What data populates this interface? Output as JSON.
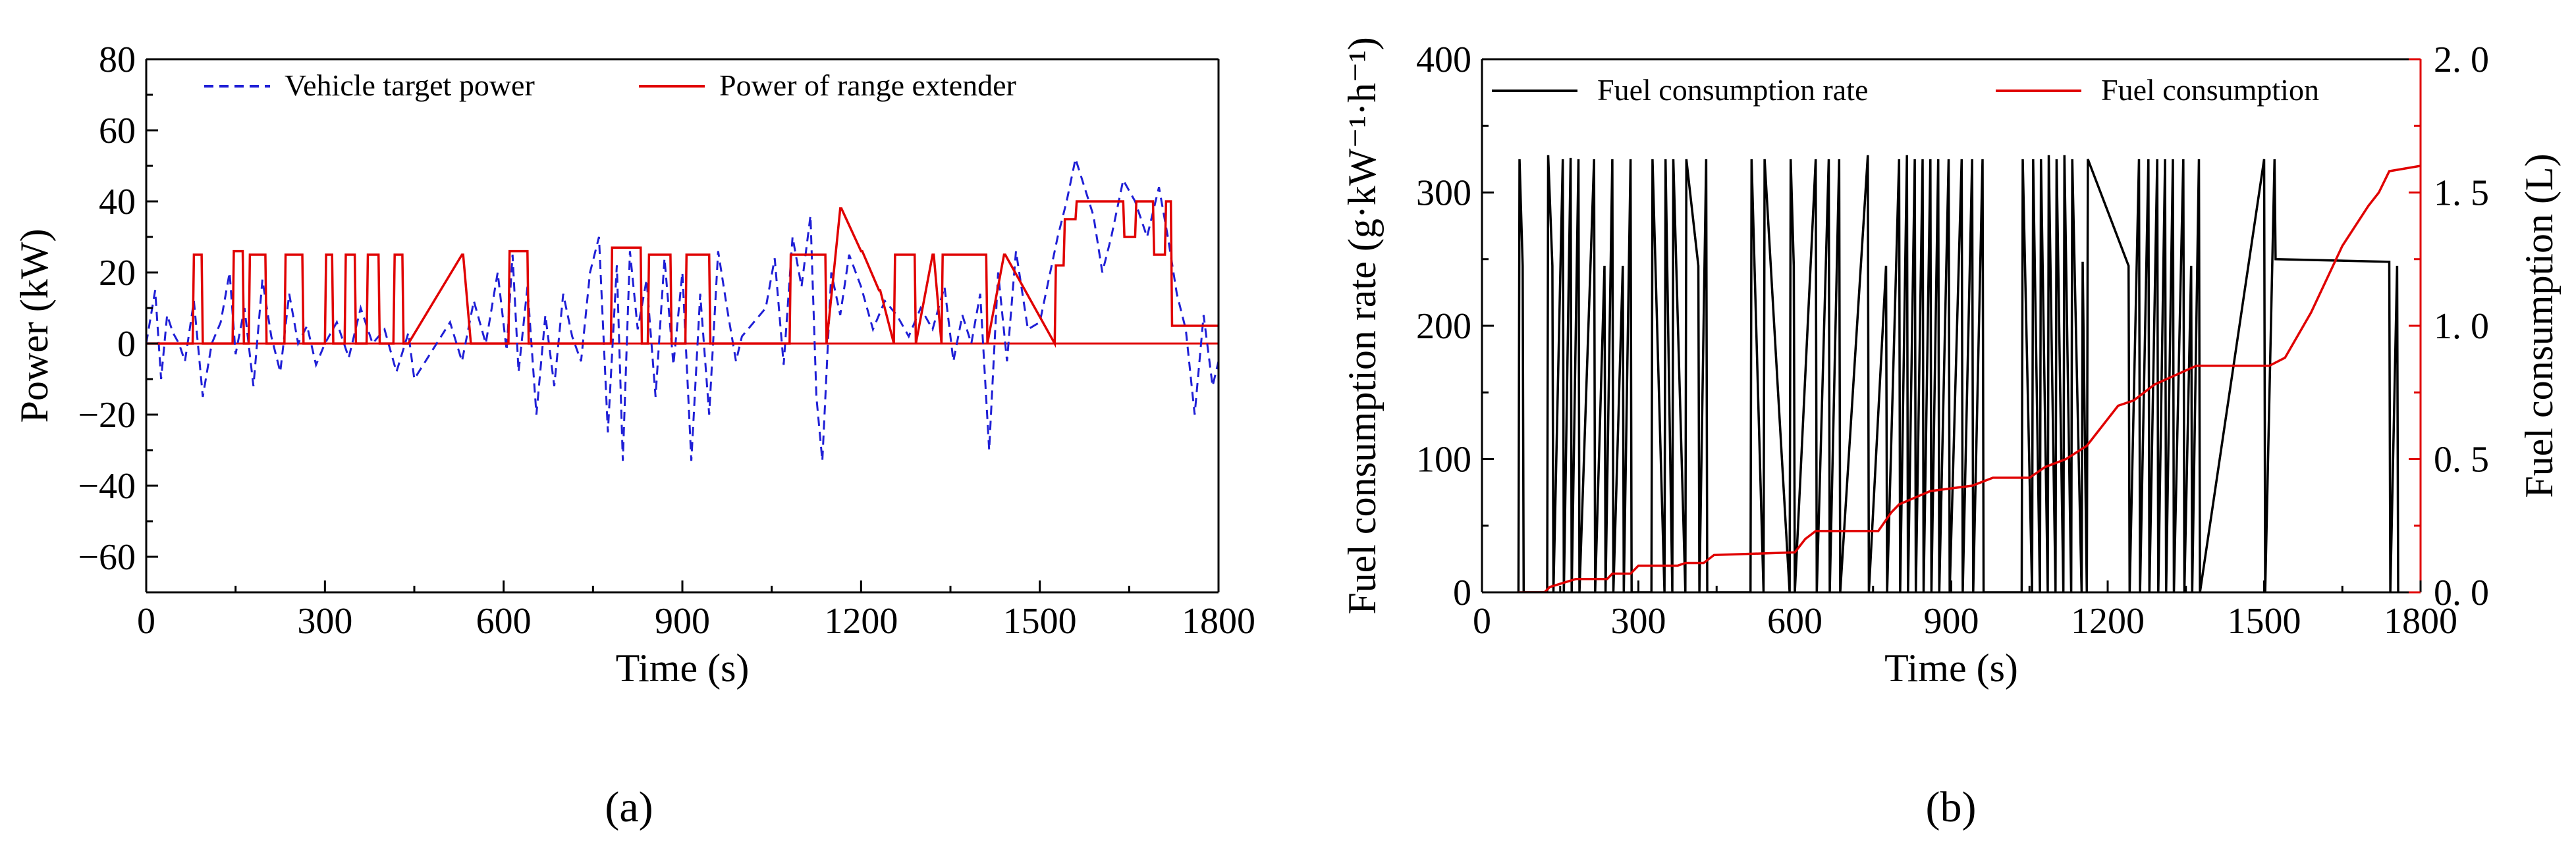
{
  "chart_data": [
    {
      "type": "line",
      "panel_label_text": "(a)",
      "xlabel": "Time (s)",
      "ylabel": "Power (kW)",
      "xlim": [
        0,
        1800
      ],
      "ylim": [
        -70,
        80
      ],
      "x_ticks": [
        0,
        300,
        600,
        900,
        1200,
        1500,
        1800
      ],
      "y_ticks": [
        -60,
        -40,
        -20,
        0,
        20,
        40,
        60,
        80
      ],
      "y_tick_labels": [
        "−60",
        "−40",
        "−20",
        "0",
        "20",
        "40",
        "60",
        "80"
      ],
      "legend": {
        "placement": "top",
        "entries": [
          "Vehicle target power",
          "Power of range extender"
        ]
      },
      "series": [
        {
          "name": "Vehicle target power",
          "color": "#1f1fd6",
          "style": "dashed",
          "x": [
            0,
            15,
            25,
            35,
            45,
            55,
            65,
            80,
            95,
            110,
            125,
            140,
            150,
            165,
            180,
            195,
            210,
            225,
            240,
            255,
            270,
            285,
            300,
            320,
            340,
            360,
            380,
            400,
            420,
            440,
            450,
            510,
            530,
            550,
            570,
            590,
            605,
            615,
            625,
            640,
            655,
            670,
            685,
            700,
            715,
            730,
            745,
            760,
            775,
            790,
            800,
            812,
            825,
            840,
            855,
            870,
            885,
            900,
            915,
            930,
            945,
            960,
            975,
            990,
            1000,
            1040,
            1055,
            1070,
            1085,
            1100,
            1115,
            1125,
            1135,
            1150,
            1165,
            1180,
            1200,
            1220,
            1240,
            1260,
            1280,
            1300,
            1320,
            1340,
            1355,
            1370,
            1385,
            1400,
            1415,
            1430,
            1445,
            1460,
            1480,
            1500,
            1515,
            1530,
            1545,
            1560,
            1575,
            1590,
            1605,
            1620,
            1640,
            1660,
            1680,
            1700,
            1715,
            1730,
            1745,
            1760,
            1775,
            1790,
            1800
          ],
          "y": [
            0,
            15,
            -10,
            8,
            3,
            0,
            -5,
            12,
            -15,
            0,
            6,
            20,
            -3,
            10,
            -12,
            18,
            2,
            -8,
            14,
            0,
            5,
            -6,
            0,
            6,
            -4,
            10,
            0,
            4,
            -8,
            3,
            -10,
            6,
            -5,
            12,
            0,
            20,
            -2,
            25,
            -8,
            16,
            -20,
            8,
            -12,
            14,
            2,
            -5,
            20,
            30,
            -25,
            22,
            -33,
            26,
            4,
            18,
            -15,
            24,
            -6,
            20,
            -33,
            14,
            -20,
            26,
            10,
            -5,
            2,
            10,
            24,
            -6,
            30,
            16,
            36,
            -15,
            -33,
            20,
            8,
            25,
            16,
            4,
            12,
            8,
            2,
            10,
            4,
            16,
            -5,
            8,
            0,
            14,
            -30,
            20,
            -5,
            26,
            4,
            6,
            18,
            30,
            40,
            52,
            44,
            36,
            20,
            30,
            46,
            40,
            30,
            44,
            30,
            14,
            4,
            -20,
            8,
            -12,
            -5
          ]
        },
        {
          "name": "Power of range extender",
          "color": "#e00000",
          "style": "solid",
          "x": [
            0,
            78,
            80,
            93,
            95,
            145,
            147,
            162,
            164,
            172,
            174,
            200,
            202,
            232,
            234,
            262,
            264,
            300,
            302,
            312,
            314,
            333,
            335,
            350,
            352,
            370,
            372,
            390,
            392,
            415,
            417,
            430,
            432,
            438,
            440,
            530,
            532,
            545,
            547,
            608,
            610,
            640,
            642,
            648,
            650,
            780,
            782,
            830,
            832,
            842,
            844,
            880,
            882,
            905,
            907,
            945,
            947,
            960,
            962,
            1080,
            1082,
            1140,
            1142,
            1165,
            1167,
            1200,
            1202,
            1230,
            1232,
            1255,
            1257,
            1290,
            1292,
            1320,
            1322,
            1335,
            1337,
            1410,
            1412,
            1440,
            1442,
            1525,
            1527,
            1540,
            1542,
            1560,
            1562,
            1640,
            1642,
            1660,
            1662,
            1690,
            1692,
            1710,
            1712,
            1720,
            1722,
            1800
          ],
          "y": [
            0,
            0,
            25,
            25,
            0,
            0,
            26,
            26,
            0,
            0,
            25,
            25,
            0,
            0,
            25,
            25,
            0,
            0,
            25,
            25,
            0,
            0,
            25,
            25,
            0,
            0,
            25,
            25,
            0,
            0,
            25,
            25,
            0,
            0,
            0,
            25,
            25,
            0,
            0,
            0,
            26,
            26,
            0,
            0,
            0,
            0,
            27,
            27,
            0,
            0,
            25,
            25,
            0,
            0,
            25,
            25,
            0,
            0,
            0,
            0,
            25,
            25,
            0,
            38,
            38,
            26,
            26,
            15,
            15,
            0,
            25,
            25,
            0,
            25,
            25,
            0,
            25,
            25,
            0,
            25,
            25,
            0,
            22,
            22,
            35,
            35,
            40,
            40,
            30,
            30,
            40,
            40,
            25,
            25,
            40,
            40,
            5,
            5
          ]
        }
      ]
    },
    {
      "type": "line",
      "panel_label_text": "(b)",
      "xlabel": "Time (s)",
      "ylabel": "Fuel consumption rate (g·kW⁻¹·h⁻¹)",
      "ylabel_secondary": "Fuel consumption (L)",
      "xlim": [
        0,
        1800
      ],
      "ylim": [
        0,
        400
      ],
      "ylim_secondary": [
        0,
        2
      ],
      "x_ticks": [
        0,
        300,
        600,
        900,
        1200,
        1500,
        1800
      ],
      "y_ticks": [
        0,
        100,
        200,
        300,
        400
      ],
      "y2_ticks": [
        0,
        0.5,
        1.0,
        1.5,
        2.0
      ],
      "y2_tick_labels": [
        "0. 0",
        "0. 5",
        "1. 0",
        "1. 5",
        "2. 0"
      ],
      "legend": {
        "placement": "top",
        "entries": [
          "Fuel consumption rate",
          "Fuel consumption"
        ]
      },
      "series": [
        {
          "name": "Fuel consumption rate",
          "axis": "left",
          "color": "#000000",
          "style": "solid",
          "x": [
            70,
            72,
            78,
            80,
            95,
            97,
            125,
            127,
            135,
            137,
            155,
            157,
            170,
            172,
            185,
            187,
            215,
            217,
            235,
            237,
            250,
            252,
            270,
            272,
            285,
            287,
            325,
            327,
            350,
            352,
            365,
            367,
            390,
            392,
            415,
            417,
            430,
            432,
            515,
            517,
            540,
            542,
            590,
            592,
            598,
            600,
            640,
            642,
            665,
            667,
            685,
            687,
            740,
            742,
            775,
            777,
            800,
            802,
            815,
            817,
            830,
            832,
            845,
            847,
            860,
            862,
            875,
            877,
            895,
            897,
            920,
            922,
            940,
            942,
            960,
            962,
            1035,
            1037,
            1055,
            1057,
            1070,
            1072,
            1085,
            1087,
            1100,
            1102,
            1115,
            1117,
            1130,
            1132,
            1150,
            1152,
            1160,
            1162,
            1240,
            1242,
            1260,
            1262,
            1278,
            1280,
            1295,
            1297,
            1310,
            1312,
            1325,
            1327,
            1345,
            1347,
            1360,
            1362,
            1375,
            1377,
            1500,
            1502,
            1520,
            1522,
            1740,
            1742,
            1755,
            1757
          ],
          "y": [
            0,
            325,
            245,
            0,
            0,
            0,
            0,
            328,
            245,
            0,
            325,
            0,
            326,
            0,
            325,
            0,
            325,
            0,
            245,
            0,
            325,
            0,
            245,
            0,
            325,
            0,
            0,
            325,
            0,
            325,
            0,
            325,
            0,
            325,
            245,
            0,
            325,
            0,
            0,
            325,
            0,
            325,
            0,
            325,
            245,
            0,
            325,
            0,
            325,
            0,
            325,
            0,
            328,
            0,
            245,
            0,
            325,
            0,
            328,
            0,
            325,
            0,
            325,
            0,
            325,
            0,
            325,
            0,
            325,
            0,
            325,
            0,
            325,
            0,
            325,
            0,
            0,
            325,
            0,
            325,
            0,
            325,
            0,
            328,
            0,
            325,
            0,
            328,
            0,
            325,
            0,
            248,
            0,
            325,
            245,
            0,
            325,
            0,
            325,
            0,
            325,
            0,
            325,
            0,
            325,
            0,
            325,
            0,
            245,
            0,
            325,
            0,
            325,
            0,
            325,
            250,
            248,
            0,
            245,
            0
          ]
        },
        {
          "name": "Fuel consumption",
          "axis": "right",
          "color": "#e00000",
          "style": "solid",
          "x": [
            70,
            120,
            130,
            180,
            240,
            250,
            285,
            300,
            375,
            390,
            425,
            445,
            600,
            620,
            640,
            700,
            760,
            785,
            800,
            860,
            940,
            980,
            1050,
            1080,
            1120,
            1160,
            1220,
            1250,
            1290,
            1370,
            1420,
            1510,
            1540,
            1590,
            1650,
            1700,
            1720,
            1740,
            1800
          ],
          "y": [
            0.0,
            0.0,
            0.02,
            0.05,
            0.05,
            0.07,
            0.07,
            0.1,
            0.1,
            0.11,
            0.11,
            0.14,
            0.15,
            0.2,
            0.23,
            0.23,
            0.23,
            0.3,
            0.33,
            0.38,
            0.4,
            0.43,
            0.43,
            0.47,
            0.5,
            0.55,
            0.7,
            0.72,
            0.78,
            0.85,
            0.85,
            0.85,
            0.88,
            1.05,
            1.3,
            1.45,
            1.5,
            1.58,
            1.6
          ]
        }
      ]
    }
  ]
}
